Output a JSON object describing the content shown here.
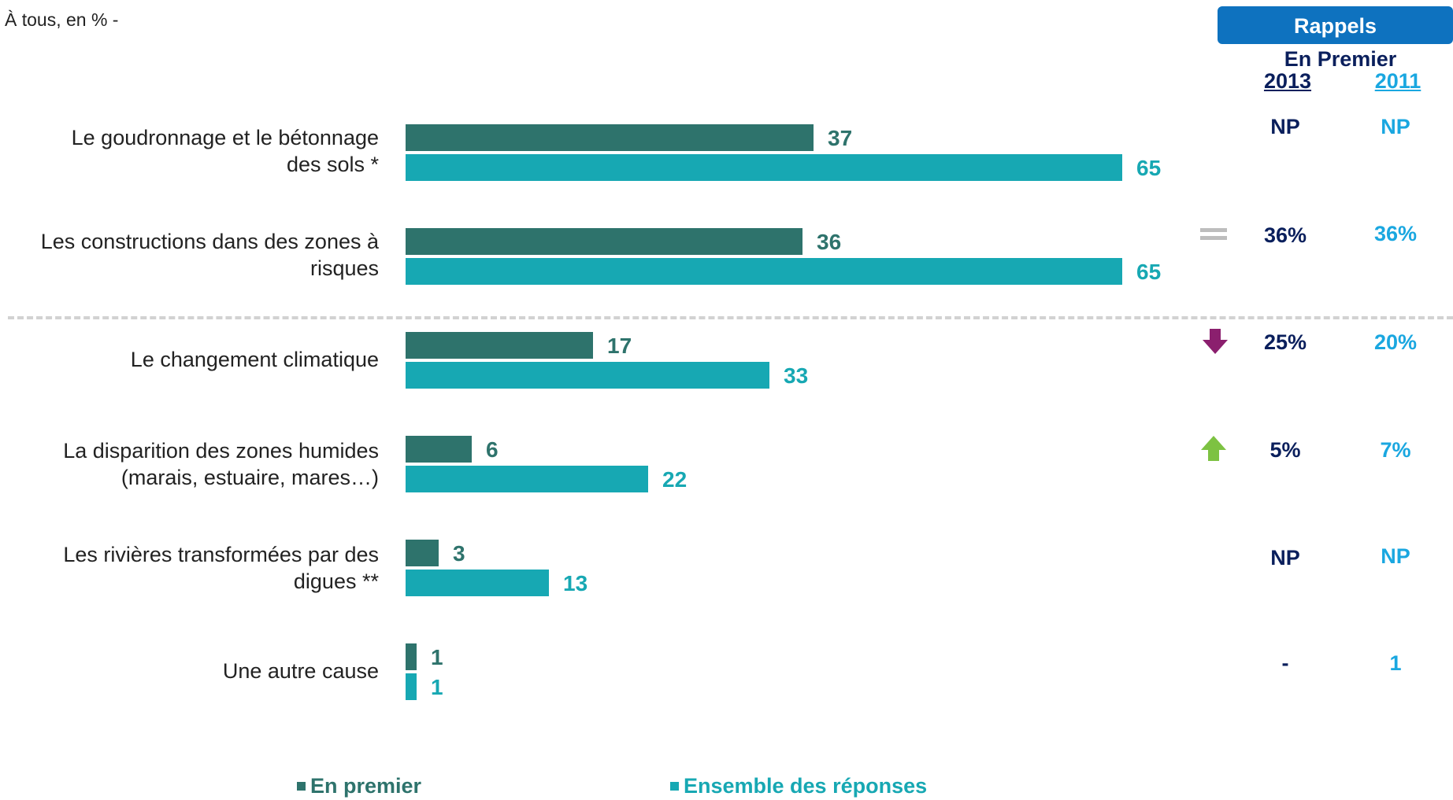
{
  "colors": {
    "first": "#2e736c",
    "total": "#17a8b3",
    "header_bg": "#0e72bf",
    "dark_navy": "#0a1f5c",
    "light_blue": "#1aa7e0",
    "equal": "#bdbdbd",
    "down": "#8b1f6e",
    "up": "#7dc242"
  },
  "header": {
    "subtitle": "À tous, en % -",
    "rappels": "Rappels",
    "en_premier": "En Premier",
    "year_a": "2013",
    "year_b": "2011"
  },
  "legend": {
    "first": "En premier",
    "total": "Ensemble des réponses"
  },
  "chart_data": {
    "type": "bar",
    "orientation": "horizontal",
    "categories": [
      "Le goudronnage et le bétonnage des sols *",
      "Les constructions dans des zones à risques",
      "Le changement climatique",
      "La disparition des zones humides (marais, estuaire, mares…)",
      "Les rivières transformées par des digues **",
      "Une autre cause"
    ],
    "series": [
      {
        "name": "En premier",
        "values": [
          37,
          36,
          17,
          6,
          3,
          1
        ]
      },
      {
        "name": "Ensemble des réponses",
        "values": [
          65,
          65,
          33,
          22,
          13,
          1
        ]
      }
    ],
    "xlim": [
      0,
      100
    ],
    "legend_position": "bottom"
  },
  "recalls": [
    {
      "trend": "",
      "y2013": "NP",
      "y2011": "NP"
    },
    {
      "trend": "equal-icon",
      "y2013": "36%",
      "y2011": "36%"
    },
    {
      "trend": "arrow-down-icon",
      "y2013": "25%",
      "y2011": "20%"
    },
    {
      "trend": "arrow-up-icon",
      "y2013": "5%",
      "y2011": "7%"
    },
    {
      "trend": "",
      "y2013": "NP",
      "y2011": "NP"
    },
    {
      "trend": "",
      "y2013": "-",
      "y2011": "1"
    }
  ],
  "category_lines": [
    [
      "Le goudronnage et le bétonnage",
      "des sols  *"
    ],
    [
      "Les constructions dans des zones à",
      "risques"
    ],
    [
      "Le changement climatique"
    ],
    [
      "La disparition des zones humides",
      "(marais, estuaire, mares…)"
    ],
    [
      "Les rivières transformées par des",
      "digues  **"
    ],
    [
      "Une autre cause"
    ]
  ]
}
